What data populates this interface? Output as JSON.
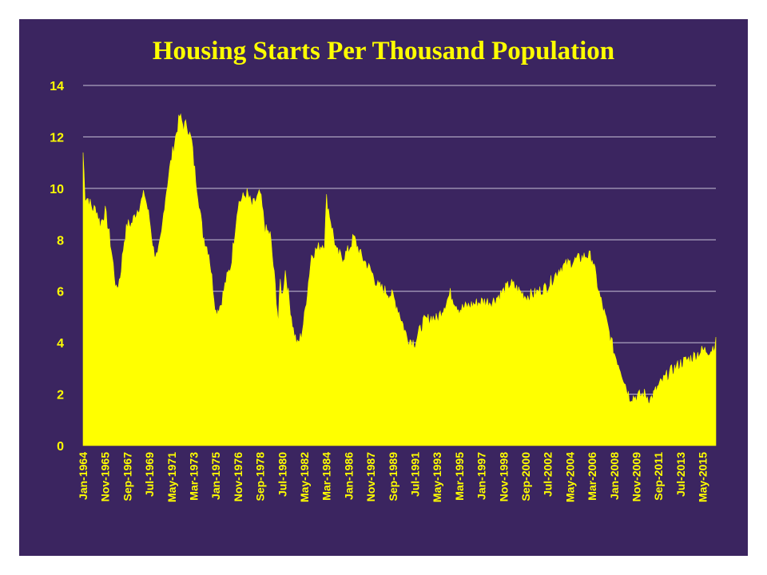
{
  "slide": {
    "background": "#3b2560"
  },
  "chart_data": {
    "type": "area",
    "title": "Housing Starts Per Thousand Population",
    "xlabel": "",
    "ylabel": "",
    "ylim": [
      0,
      14
    ],
    "y_ticks": [
      0,
      2,
      4,
      6,
      8,
      10,
      12,
      14
    ],
    "grid": true,
    "legend": "none",
    "fill_color": "#ffff00",
    "text_color": "#ffff00",
    "grid_color": "#c8c2d6",
    "x_range": [
      "Jan-1964",
      "Jun-2016"
    ],
    "x_tick_labels": [
      "Jan-1964",
      "Nov-1965",
      "Sep-1967",
      "Jul-1969",
      "May-1971",
      "Mar-1973",
      "Jan-1975",
      "Nov-1976",
      "Sep-1978",
      "Jul-1980",
      "May-1982",
      "Mar-1984",
      "Jan-1986",
      "Nov-1987",
      "Sep-1989",
      "Jul-1991",
      "May-1993",
      "Mar-1995",
      "Jan-1997",
      "Nov-1998",
      "Sep-2000",
      "Jul-2002",
      "May-2004",
      "Mar-2006",
      "Jan-2008",
      "Nov-2009",
      "Sep-2011",
      "Jul-2013",
      "May-2015"
    ],
    "series": [
      {
        "x": [
          "Jan-1964",
          "Mar-1964",
          "Jun-1964",
          "Oct-1964",
          "Feb-1965",
          "Jun-1965",
          "Nov-1965",
          "Mar-1966",
          "Jul-1966",
          "Oct-1966",
          "Feb-1967",
          "Jun-1967",
          "Sep-1967",
          "Jan-1968",
          "May-1968",
          "Nov-1968",
          "Feb-1969",
          "Jul-1969",
          "Nov-1969",
          "Mar-1970",
          "Jul-1970",
          "Oct-1970",
          "Feb-1971",
          "May-1971",
          "Aug-1971",
          "Jan-1972",
          "May-1972",
          "Aug-1972",
          "Jan-1973",
          "Mar-1973",
          "Jul-1973",
          "Dec-1973",
          "Jun-1974",
          "Jan-1975",
          "Jun-1975",
          "Nov-1975",
          "Apr-1976",
          "Nov-1976",
          "Mar-1977",
          "Aug-1977",
          "Jan-1978",
          "Sep-1978",
          "Feb-1979",
          "Jul-1979",
          "Dec-1979",
          "Mar-1980",
          "May-1980",
          "Jul-1980",
          "Oct-1980",
          "Feb-1981",
          "Jun-1981",
          "Oct-1981",
          "Feb-1982",
          "May-1982",
          "Dec-1982",
          "Jul-1983",
          "Jan-1984",
          "Mar-1984",
          "Jan-1985",
          "Jul-1985",
          "Jan-1986",
          "Jun-1986",
          "Jan-1987",
          "Nov-1987",
          "Jun-1988",
          "Feb-1989",
          "Sep-1989",
          "Mar-1990",
          "Nov-1990",
          "Jul-1991",
          "Mar-1992",
          "Dec-1992",
          "May-1993",
          "Jun-1994",
          "Mar-1995",
          "Oct-1995",
          "Jan-1997",
          "Dec-1997",
          "Nov-1998",
          "Jun-1999",
          "Sep-2000",
          "Jun-2001",
          "Jul-2002",
          "Jul-2003",
          "May-2004",
          "Oct-2005",
          "Mar-2006",
          "Oct-2006",
          "Apr-2007",
          "Jan-2008",
          "Jul-2008",
          "Apr-2009",
          "Nov-2009",
          "Jul-2010",
          "Jan-2011",
          "Sep-2011",
          "Jul-2012",
          "Jul-2013",
          "May-2014",
          "May-2015",
          "Jan-2016",
          "Jun-2016"
        ],
        "values": [
          11.4,
          9.7,
          9.6,
          9.2,
          9.2,
          8.6,
          9.1,
          8.2,
          7.0,
          6.0,
          6.6,
          8.0,
          8.6,
          8.6,
          9.0,
          9.5,
          9.8,
          8.8,
          7.6,
          7.3,
          8.2,
          9.4,
          10.5,
          11.2,
          11.8,
          12.8,
          12.4,
          12.5,
          11.8,
          11.0,
          9.8,
          8.2,
          7.5,
          5.2,
          5.5,
          6.4,
          7.0,
          9.4,
          9.6,
          9.8,
          9.3,
          9.8,
          8.4,
          8.2,
          6.2,
          4.8,
          6.4,
          5.8,
          6.8,
          5.6,
          4.5,
          3.9,
          4.3,
          5.0,
          7.4,
          7.7,
          7.9,
          9.6,
          7.5,
          7.3,
          7.6,
          8.1,
          7.4,
          6.8,
          6.2,
          6.0,
          5.8,
          5.2,
          4.2,
          4.0,
          4.8,
          5.0,
          4.9,
          5.9,
          5.3,
          5.4,
          5.6,
          5.6,
          6.0,
          6.3,
          5.8,
          5.9,
          6.2,
          6.9,
          7.1,
          7.4,
          7.3,
          5.9,
          5.0,
          3.6,
          3.0,
          1.9,
          1.9,
          2.0,
          1.8,
          2.3,
          2.8,
          3.2,
          3.4,
          3.7,
          3.7,
          4.0
        ]
      }
    ]
  }
}
